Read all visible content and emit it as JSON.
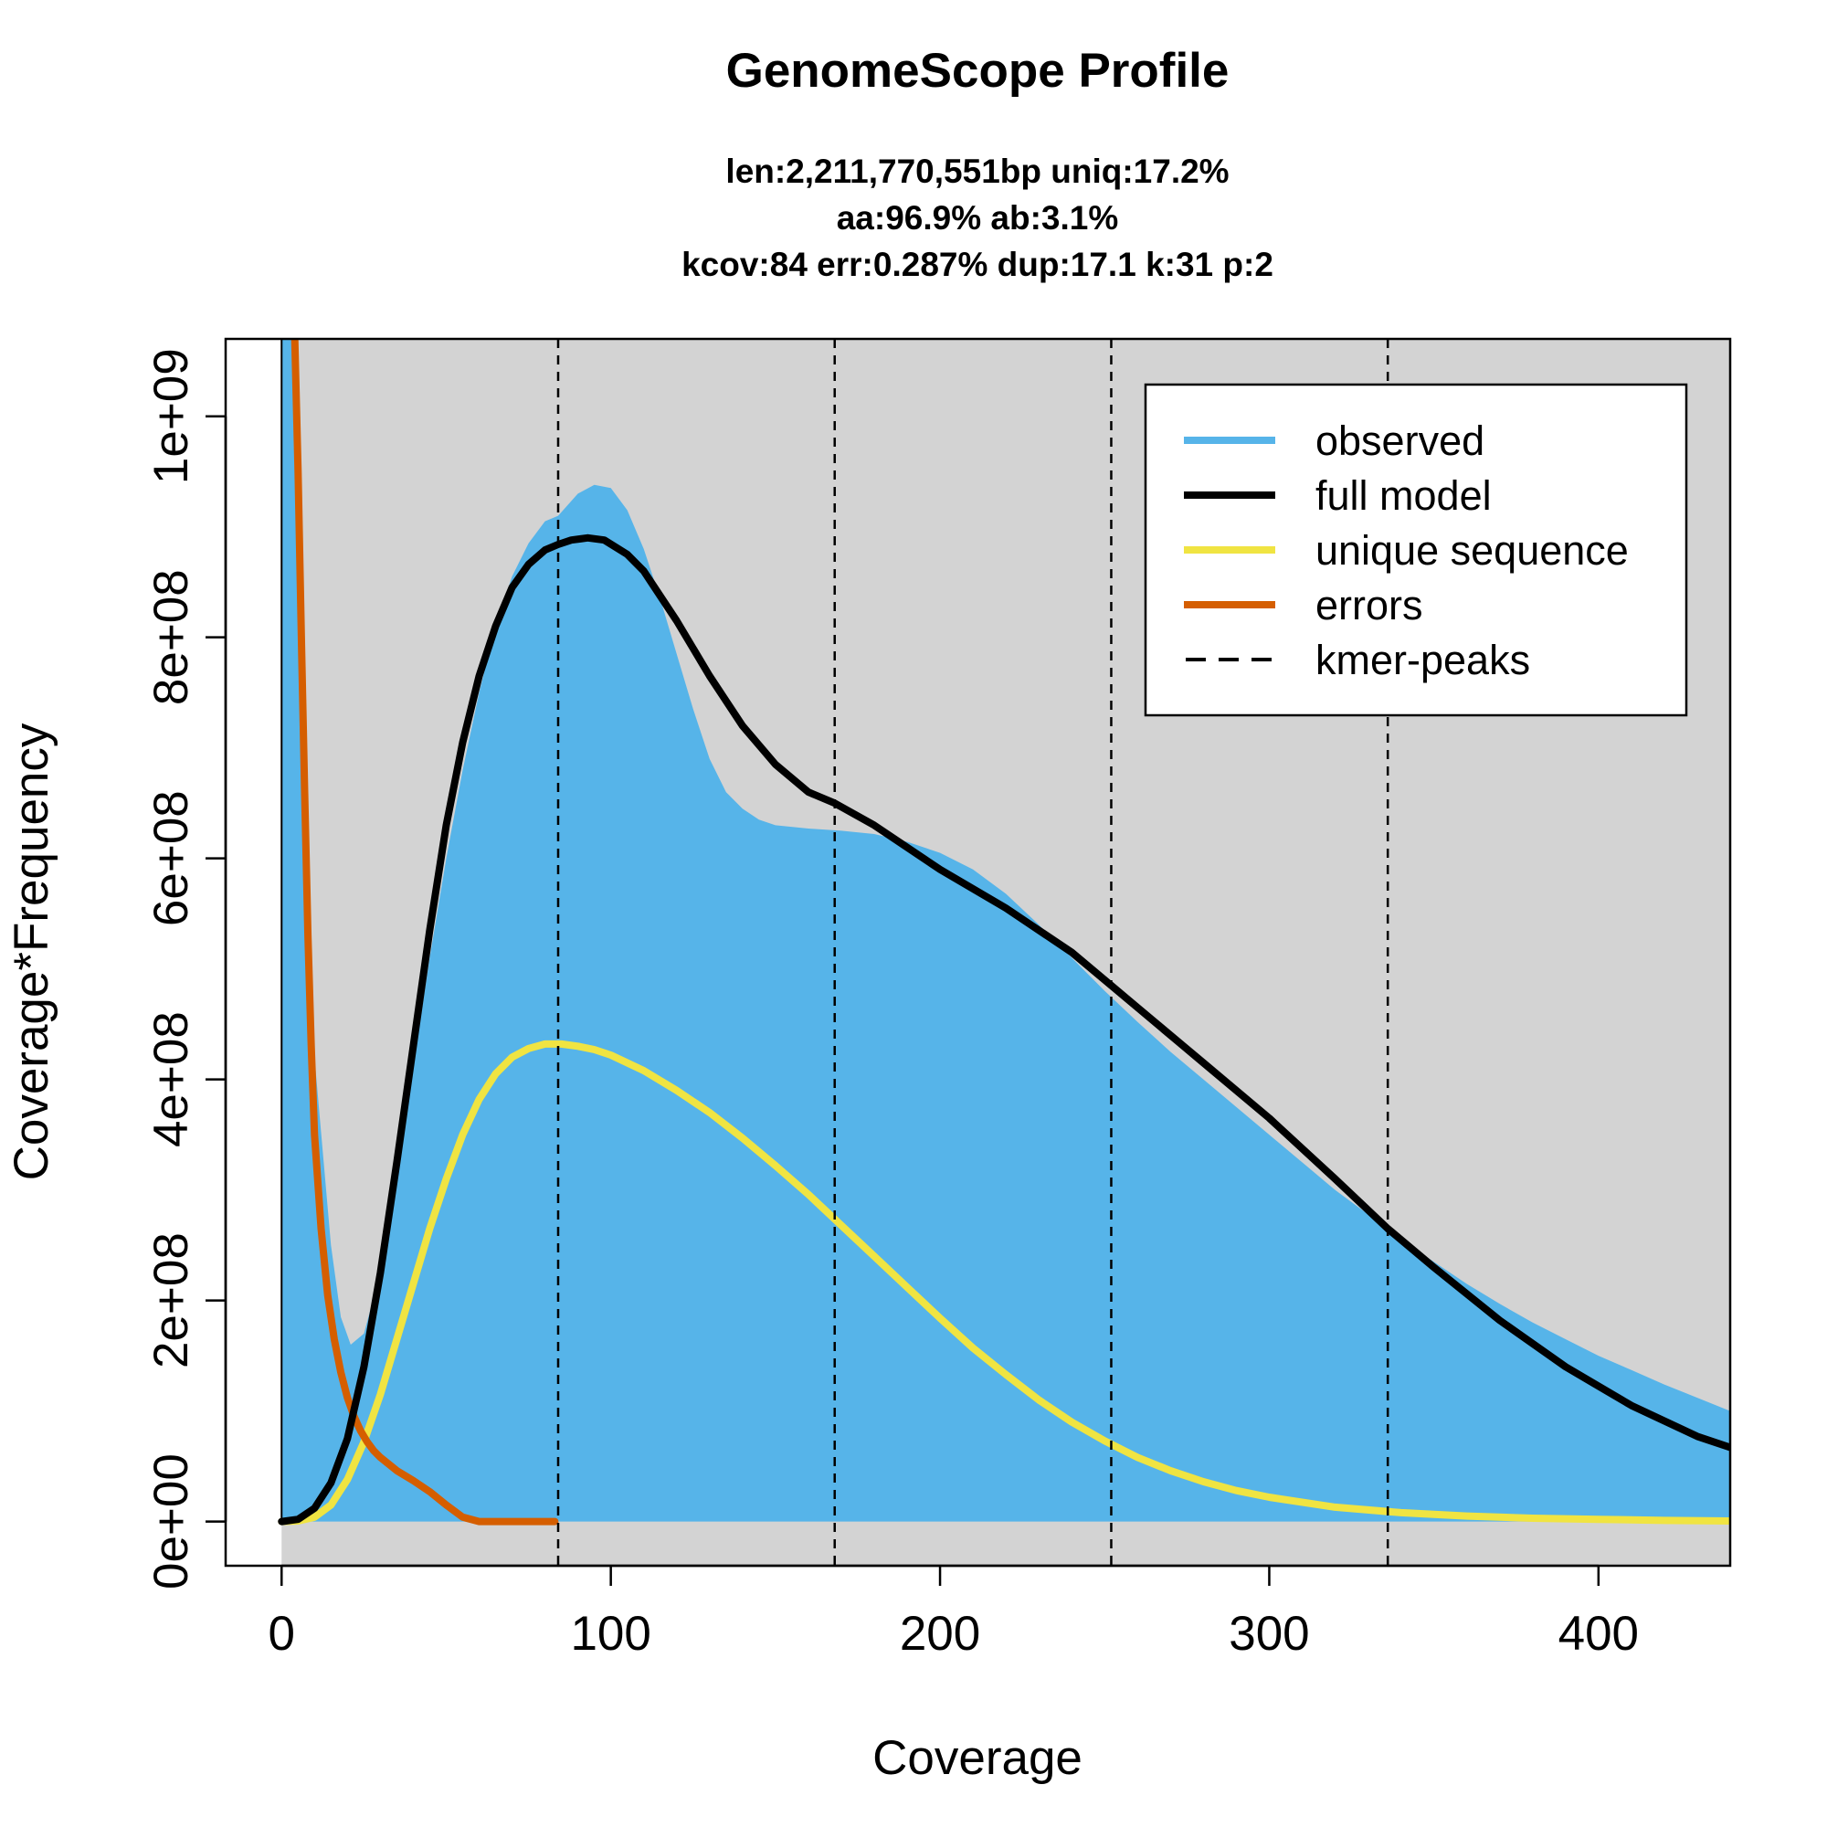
{
  "chart_data": {
    "type": "area",
    "title": "GenomeScope Profile",
    "subtitle_lines": [
      "len:2,211,770,551bp uniq:17.2%",
      "aa:96.9% ab:3.1%",
      "kcov:84 err:0.287%  dup:17.1  k:31 p:2"
    ],
    "xlabel": "Coverage",
    "ylabel": "Coverage*Frequency",
    "xlim": [
      -17,
      440
    ],
    "ylim": [
      -40000000,
      1070000000
    ],
    "x_ticks": [
      0,
      100,
      200,
      300,
      400
    ],
    "x_tick_labels": [
      "0",
      "100",
      "200",
      "300",
      "400"
    ],
    "y_ticks": [
      0,
      200000000,
      400000000,
      600000000,
      800000000,
      1000000000
    ],
    "y_tick_labels": [
      "0e+00",
      "2e+08",
      "4e+08",
      "6e+08",
      "8e+08",
      "1e+09"
    ],
    "kmer_peaks": [
      84,
      168,
      252,
      336
    ],
    "colors": {
      "plot_bg": "#d3d3d3",
      "observed": "#56b4e9",
      "full_model": "#000000",
      "unique_sequence": "#f0e442",
      "errors": "#d55e00"
    },
    "legend": {
      "placement": "top-right",
      "entries": [
        {
          "label": "observed",
          "color": "#56b4e9",
          "style": "solid"
        },
        {
          "label": "full model",
          "color": "#000000",
          "style": "solid"
        },
        {
          "label": "unique sequence",
          "color": "#f0e442",
          "style": "solid"
        },
        {
          "label": "errors",
          "color": "#d55e00",
          "style": "solid"
        },
        {
          "label": "kmer-peaks",
          "color": "#000000",
          "style": "dashed"
        }
      ]
    },
    "series": [
      {
        "name": "observed",
        "x": [
          0,
          3,
          6,
          10,
          15,
          18,
          21,
          25,
          30,
          35,
          40,
          45,
          50,
          55,
          60,
          65,
          70,
          75,
          80,
          84,
          90,
          95,
          100,
          105,
          110,
          115,
          120,
          125,
          130,
          135,
          140,
          145,
          150,
          160,
          170,
          180,
          190,
          200,
          210,
          220,
          230,
          240,
          250,
          260,
          270,
          280,
          290,
          300,
          310,
          320,
          330,
          340,
          350,
          360,
          370,
          380,
          390,
          400,
          410,
          420,
          430,
          440
        ],
        "y": [
          1070000000,
          1070000000,
          700000000,
          420000000,
          250000000,
          185000000,
          160000000,
          170000000,
          225000000,
          310000000,
          410000000,
          510000000,
          600000000,
          680000000,
          750000000,
          810000000,
          855000000,
          885000000,
          905000000,
          910000000,
          930000000,
          938000000,
          935000000,
          915000000,
          880000000,
          835000000,
          785000000,
          735000000,
          690000000,
          660000000,
          645000000,
          635000000,
          630000000,
          627000000,
          625000000,
          622000000,
          615000000,
          605000000,
          590000000,
          568000000,
          540000000,
          510000000,
          480000000,
          452000000,
          425000000,
          400000000,
          375000000,
          350000000,
          325000000,
          300000000,
          278000000,
          255000000,
          235000000,
          215000000,
          197000000,
          180000000,
          165000000,
          150000000,
          137000000,
          124000000,
          112000000,
          100000000
        ]
      },
      {
        "name": "full model",
        "x": [
          0,
          5,
          10,
          15,
          20,
          25,
          30,
          35,
          40,
          45,
          50,
          55,
          60,
          65,
          70,
          75,
          80,
          84,
          88,
          93,
          98,
          105,
          110,
          120,
          130,
          140,
          150,
          160,
          168,
          180,
          200,
          220,
          240,
          252,
          260,
          280,
          300,
          320,
          336,
          350,
          370,
          390,
          410,
          430,
          440
        ],
        "y": [
          0,
          2000000,
          12000000,
          35000000,
          75000000,
          140000000,
          225000000,
          325000000,
          430000000,
          535000000,
          630000000,
          705000000,
          765000000,
          810000000,
          845000000,
          866000000,
          879000000,
          884000000,
          888000000,
          890000000,
          888000000,
          875000000,
          860000000,
          815000000,
          765000000,
          720000000,
          685000000,
          660000000,
          650000000,
          630000000,
          590000000,
          555000000,
          515000000,
          485000000,
          465000000,
          415000000,
          365000000,
          310000000,
          265000000,
          230000000,
          182000000,
          140000000,
          105000000,
          77000000,
          67000000
        ]
      },
      {
        "name": "unique sequence",
        "x": [
          0,
          5,
          10,
          15,
          20,
          25,
          30,
          35,
          40,
          45,
          50,
          55,
          60,
          65,
          70,
          75,
          80,
          85,
          90,
          95,
          100,
          110,
          120,
          130,
          140,
          150,
          160,
          170,
          180,
          190,
          200,
          210,
          220,
          230,
          240,
          250,
          260,
          270,
          280,
          290,
          300,
          320,
          340,
          360,
          380,
          400,
          420,
          440
        ],
        "y": [
          0,
          500000,
          4000000,
          15000000,
          38000000,
          72000000,
          115000000,
          165000000,
          215000000,
          265000000,
          310000000,
          350000000,
          382000000,
          405000000,
          420000000,
          428000000,
          432000000,
          432000000,
          430000000,
          427000000,
          422000000,
          408000000,
          390000000,
          370000000,
          347000000,
          322000000,
          296000000,
          268000000,
          240000000,
          212000000,
          184000000,
          157000000,
          133000000,
          110000000,
          90000000,
          73000000,
          58000000,
          46000000,
          36000000,
          28000000,
          22000000,
          13000000,
          8000000,
          5000000,
          3000000,
          2000000,
          1000000,
          500000
        ]
      },
      {
        "name": "errors",
        "x": [
          4,
          5,
          6,
          7,
          8,
          9,
          10,
          12,
          14,
          16,
          18,
          20,
          22,
          24,
          26,
          28,
          30,
          35,
          40,
          45,
          50,
          55,
          60,
          70,
          83
        ],
        "y": [
          1070000000,
          950000000,
          800000000,
          660000000,
          530000000,
          430000000,
          350000000,
          265000000,
          205000000,
          165000000,
          135000000,
          112000000,
          95000000,
          82000000,
          72000000,
          64000000,
          58000000,
          46000000,
          37000000,
          27000000,
          15000000,
          4000000,
          0,
          0,
          0
        ]
      }
    ]
  }
}
